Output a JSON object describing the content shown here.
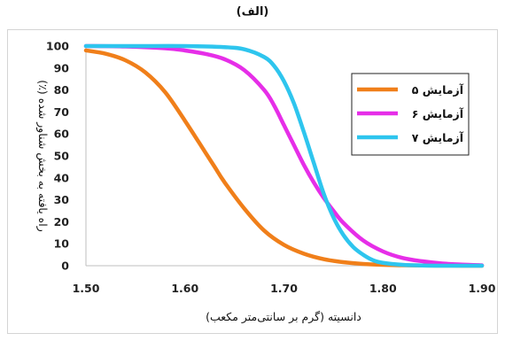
{
  "panel_label": "(الف)",
  "chart_data": {
    "type": "line",
    "xlabel": "دانسیته (گرم بر سانتی‌متر مکعب)",
    "ylabel": "راه یافته به بخش شناور شده (٪)",
    "xlim": [
      1.5,
      1.9
    ],
    "ylim": [
      0,
      100
    ],
    "x_ticks": [
      "1.50",
      "1.60",
      "1.70",
      "1.80",
      "1.90"
    ],
    "y_ticks": [
      "0",
      "10",
      "20",
      "30",
      "40",
      "50",
      "60",
      "70",
      "80",
      "90",
      "100"
    ],
    "grid": false,
    "legend": "right",
    "series": [
      {
        "name": "آزمایش ۵",
        "color": "#F07F1A",
        "x": [
          1.5,
          1.52,
          1.54,
          1.56,
          1.58,
          1.6,
          1.62,
          1.63,
          1.64,
          1.66,
          1.68,
          1.7,
          1.72,
          1.74,
          1.76,
          1.78,
          1.8,
          1.82,
          1.84,
          1.86,
          1.88,
          1.9
        ],
        "y": [
          98,
          96.5,
          93.5,
          88,
          79,
          66,
          52,
          45,
          38,
          26,
          16,
          9.5,
          5.5,
          3,
          1.6,
          0.8,
          0.4,
          0.2,
          0.1,
          0.05,
          0,
          0
        ]
      },
      {
        "name": "آزمایش ۶",
        "color": "#E62EE8",
        "x": [
          1.5,
          1.54,
          1.58,
          1.6,
          1.62,
          1.64,
          1.66,
          1.68,
          1.69,
          1.7,
          1.71,
          1.72,
          1.73,
          1.74,
          1.75,
          1.76,
          1.78,
          1.8,
          1.82,
          1.84,
          1.86,
          1.88,
          1.9
        ],
        "y": [
          100,
          99.8,
          99,
          98,
          96.5,
          94,
          89,
          80,
          73,
          64,
          55,
          46,
          38,
          31,
          25,
          19.5,
          11.5,
          6.5,
          3.5,
          2,
          1,
          0.5,
          0.2
        ]
      },
      {
        "name": "آزمایش ۷",
        "color": "#2EC5EE",
        "x": [
          1.5,
          1.55,
          1.6,
          1.64,
          1.66,
          1.68,
          1.69,
          1.7,
          1.71,
          1.72,
          1.73,
          1.74,
          1.75,
          1.76,
          1.77,
          1.78,
          1.79,
          1.8,
          1.82,
          1.84,
          1.86,
          1.9
        ],
        "y": [
          100,
          100,
          100,
          99.5,
          98.5,
          95,
          91,
          84,
          74,
          61,
          47,
          33,
          22,
          14,
          8.5,
          5,
          2.5,
          1.3,
          0.4,
          0.1,
          0,
          0
        ]
      }
    ]
  }
}
